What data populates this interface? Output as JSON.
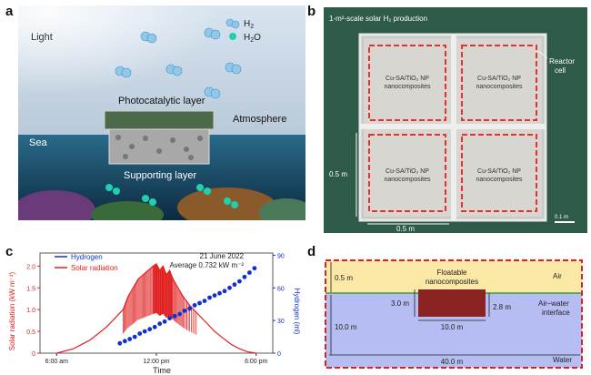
{
  "panels": {
    "a": {
      "letter": "a",
      "labels": {
        "light": "Light",
        "h2": "H",
        "h2_sub": "2",
        "h2o": "H",
        "h2o_sub": "2",
        "h2o_tail": "O",
        "photocatalytic": "Photocatalytic layer",
        "atmosphere": "Atmosphere",
        "sea": "Sea",
        "supporting": "Supporting layer"
      }
    },
    "b": {
      "letter": "b",
      "title": "1-m²-scale solar H₂ production",
      "reactor_label_1": "Reactor",
      "reactor_label_2": "cell",
      "cell_line1": "Cu-SA/TiO₂ NP",
      "cell_line2": "nanocomposites",
      "dim_vertical": "0.5 m",
      "dim_horizontal": "0.5 m",
      "scale_bar": "0.1 m"
    },
    "c": {
      "letter": "c",
      "legend_hydrogen": "Hydrogen",
      "legend_solar": "Solar radiation",
      "date": "21 June 2022",
      "average": "Average 0.732 kW m⁻²",
      "colors": {
        "hydrogen": "#1030d0",
        "solar": "#e02020"
      }
    },
    "d": {
      "letter": "d",
      "air": "Air",
      "water": "Water",
      "interface_1": "Air–water",
      "interface_2": "interface",
      "floatable_1": "Floatable",
      "floatable_2": "nanocomposites",
      "dim_air": "0.5 m",
      "dim_water": "10.0 m",
      "dim_width": "40.0 m",
      "block_height_left": "3.0 m",
      "block_height_right": "2.8 m",
      "block_width": "10.0 m",
      "colors": {
        "air": "#fbe7a6",
        "water": "#b5bdf2",
        "block": "#8b2323",
        "border": "#e02020"
      }
    }
  },
  "chart_data": {
    "type": "line",
    "x_label": "Time",
    "y_label_left": "Solar radiation (kW m⁻²)",
    "y_label_right": "Hydrogen (ml)",
    "x_ticks": [
      "6:00 am",
      "12:00 pm",
      "6:00 pm"
    ],
    "x_range": [
      5.0,
      19.0
    ],
    "y_left_range": [
      0,
      2.3
    ],
    "y_left_ticks": [
      "0",
      "0.5",
      "1.0",
      "1.5",
      "2.0"
    ],
    "y_right_range": [
      0,
      92
    ],
    "y_right_ticks": [
      "0",
      "30",
      "60",
      "90"
    ],
    "series": [
      {
        "name": "Solar radiation",
        "axis": "left",
        "x": [
          6.0,
          7.0,
          8.0,
          9.0,
          9.5,
          10.0,
          10.3,
          10.6,
          10.9,
          11.2,
          11.5,
          11.8,
          12.0,
          12.2,
          12.4,
          12.6,
          12.8,
          13.0,
          13.3,
          13.6,
          14.0,
          14.5,
          15.0,
          15.5,
          16.0,
          16.5,
          17.0,
          17.5,
          18.0
        ],
        "values": [
          0.0,
          0.1,
          0.3,
          0.6,
          0.8,
          1.0,
          1.3,
          1.5,
          1.7,
          1.8,
          1.9,
          2.0,
          2.05,
          1.9,
          2.0,
          1.8,
          1.9,
          1.7,
          1.5,
          1.3,
          1.1,
          0.9,
          0.7,
          0.5,
          0.35,
          0.2,
          0.1,
          0.03,
          0.0
        ]
      },
      {
        "name": "Hydrogen",
        "axis": "right",
        "x": [
          9.8,
          10.1,
          10.4,
          10.7,
          11.0,
          11.3,
          11.6,
          11.9,
          12.2,
          12.5,
          12.8,
          13.1,
          13.4,
          13.7,
          14.0,
          14.3,
          14.6,
          14.9,
          15.2,
          15.5,
          15.8,
          16.1,
          16.4,
          16.7,
          17.0,
          17.3,
          17.6,
          17.9
        ],
        "values": [
          9,
          11,
          13,
          15,
          18,
          20,
          22,
          24,
          27,
          29,
          32,
          34,
          36,
          39,
          41,
          44,
          46,
          48,
          51,
          53,
          55,
          57,
          60,
          63,
          66,
          70,
          74,
          78
        ]
      }
    ]
  }
}
